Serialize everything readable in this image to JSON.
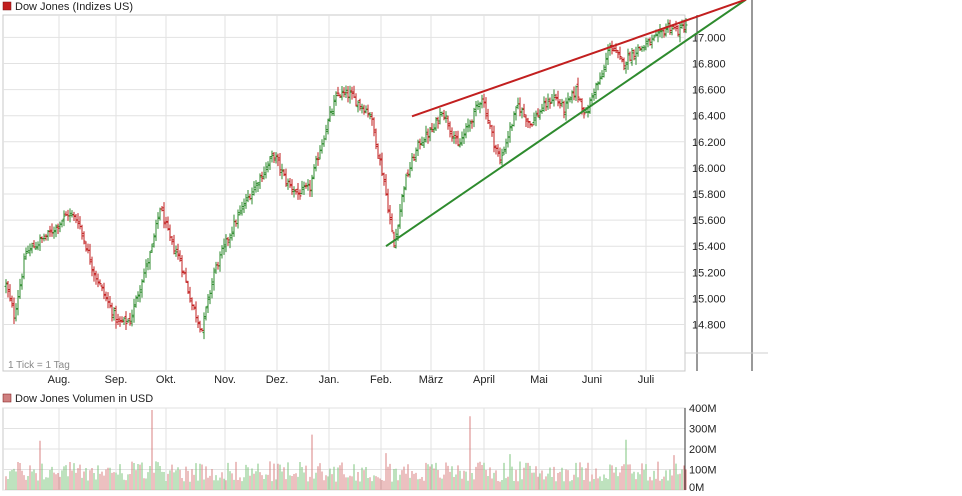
{
  "chart_data": [
    {
      "type": "candlestick",
      "title": "Dow Jones (Indizes US)",
      "x_ticks": [
        "Aug.",
        "Sep.",
        "Okt.",
        "Nov.",
        "Dez.",
        "Jan.",
        "Feb.",
        "März",
        "April",
        "Mai",
        "Juni",
        "Juli"
      ],
      "y_ticks": [
        "14.800",
        "15.000",
        "15.200",
        "15.400",
        "15.600",
        "15.800",
        "16.000",
        "16.200",
        "16.400",
        "16.600",
        "16.800",
        "17.000"
      ],
      "y_tick_values": [
        14800,
        15000,
        15200,
        15400,
        15600,
        15800,
        16000,
        16200,
        16400,
        16600,
        16800,
        17000
      ],
      "ylim": [
        14580,
        17290
      ],
      "grid": true,
      "tick_note": "1 Tick = 1 Tag",
      "colors": {
        "up": "#2e8b2e",
        "down": "#c21f1f",
        "grid": "#e2e2e2",
        "support": "#2e8b2e",
        "resistance": "#c21f1f"
      },
      "anchors": [
        [
          0,
          15100
        ],
        [
          4,
          14870
        ],
        [
          10,
          15350
        ],
        [
          22,
          15500
        ],
        [
          31,
          15650
        ],
        [
          36,
          15600
        ],
        [
          44,
          15200
        ],
        [
          50,
          15000
        ],
        [
          56,
          14810
        ],
        [
          62,
          14830
        ],
        [
          68,
          15150
        ],
        [
          73,
          15380
        ],
        [
          77,
          15700
        ],
        [
          82,
          15450
        ],
        [
          87,
          15300
        ],
        [
          93,
          14950
        ],
        [
          98,
          14760
        ],
        [
          104,
          15200
        ],
        [
          112,
          15500
        ],
        [
          120,
          15750
        ],
        [
          128,
          15950
        ],
        [
          134,
          16100
        ],
        [
          140,
          15900
        ],
        [
          146,
          15800
        ],
        [
          152,
          15850
        ],
        [
          157,
          16150
        ],
        [
          162,
          16400
        ],
        [
          166,
          16570
        ],
        [
          172,
          16560
        ],
        [
          176,
          16500
        ],
        [
          182,
          16420
        ],
        [
          189,
          15900
        ],
        [
          194,
          15400
        ],
        [
          199,
          15870
        ],
        [
          203,
          16050
        ],
        [
          207,
          16200
        ],
        [
          214,
          16300
        ],
        [
          218,
          16450
        ],
        [
          222,
          16310
        ],
        [
          226,
          16160
        ],
        [
          232,
          16350
        ],
        [
          238,
          16550
        ],
        [
          243,
          16250
        ],
        [
          247,
          16050
        ],
        [
          251,
          16250
        ],
        [
          256,
          16480
        ],
        [
          262,
          16340
        ],
        [
          268,
          16450
        ],
        [
          274,
          16550
        ],
        [
          279,
          16450
        ],
        [
          285,
          16600
        ],
        [
          290,
          16400
        ],
        [
          294,
          16600
        ],
        [
          298,
          16700
        ],
        [
          302,
          16950
        ],
        [
          308,
          16800
        ],
        [
          315,
          16900
        ],
        [
          321,
          16950
        ],
        [
          326,
          17000
        ],
        [
          331,
          17090
        ],
        [
          336,
          17050
        ],
        [
          340,
          17100
        ]
      ],
      "trend_lines": [
        {
          "name": "support",
          "from": [
            190,
            15400
          ],
          "to": [
            370,
            17290
          ]
        },
        {
          "name": "resistance",
          "from": [
            203,
            16395
          ],
          "to": [
            370,
            17290
          ]
        }
      ]
    },
    {
      "type": "bar",
      "title": "Dow Jones Volumen in USD",
      "y_ticks": [
        "400M",
        "300M",
        "200M",
        "100M",
        "0M"
      ],
      "y_tick_values": [
        400,
        300,
        200,
        100,
        0
      ],
      "ylim": [
        0,
        400
      ],
      "unit": "M USD",
      "typical_volume": [
        40,
        140
      ],
      "spikes": [
        {
          "day": 17,
          "value": 240
        },
        {
          "day": 73,
          "value": 390
        },
        {
          "day": 153,
          "value": 270
        },
        {
          "day": 190,
          "value": 180
        },
        {
          "day": 232,
          "value": 360
        },
        {
          "day": 252,
          "value": 175
        },
        {
          "day": 310,
          "value": 245
        },
        {
          "day": 334,
          "value": 170
        }
      ]
    }
  ]
}
